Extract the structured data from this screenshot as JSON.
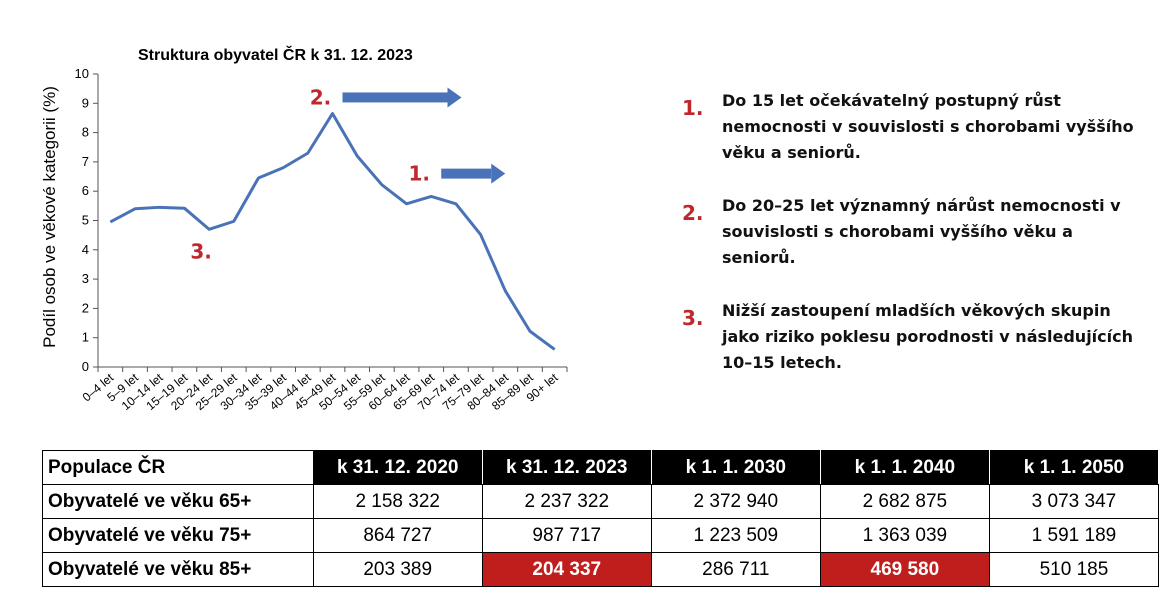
{
  "chart_data": {
    "type": "line",
    "title": "Struktura obyvatel ČR k 31. 12. 2023",
    "ylabel": "Podíl osob ve věkové kategorii (%)",
    "xlabel": "",
    "ylim": [
      0,
      10
    ],
    "yticks": [
      0,
      1,
      2,
      3,
      4,
      5,
      6,
      7,
      8,
      9,
      10
    ],
    "categories": [
      "0–4 let",
      "5–9 let",
      "10–14 let",
      "15–19 let",
      "20–24 let",
      "25–29 let",
      "30–34 let",
      "35–39 let",
      "40–44 let",
      "45–49 let",
      "50–54 let",
      "55–59 let",
      "60–64 let",
      "65–69 let",
      "70–74 let",
      "75–79 let",
      "80–84 let",
      "85–89 let",
      "90+ let"
    ],
    "values": [
      4.95,
      5.4,
      5.45,
      5.42,
      4.7,
      4.97,
      6.45,
      6.8,
      7.3,
      8.65,
      7.2,
      6.22,
      5.57,
      5.82,
      5.57,
      4.52,
      2.6,
      1.22,
      0.6
    ],
    "color": "#4a72b8",
    "annotations": [
      {
        "label": "2.",
        "category": "45–49 let",
        "y": 9.2
      },
      {
        "label": "1.",
        "category": "65–69 let",
        "y": 6.6
      },
      {
        "label": "3.",
        "category": "20–24 let",
        "y": 3.95
      }
    ],
    "annotation_color": "#c0272d",
    "arrow_color": "#4a72b8",
    "grid": false,
    "legend": "none"
  },
  "notes": [
    {
      "num": "1.",
      "text": "Do 15 let očekávatelný postupný růst nemocnosti v souvislosti s chorobami vyššího věku a seniorů."
    },
    {
      "num": "2.",
      "text": "Do 20–25 let významný nárůst nemocnosti v souvislosti s chorobami vyššího věku a seniorů."
    },
    {
      "num": "3.",
      "text": "Nižší zastoupení mladších věkových skupin jako riziko poklesu porodnosti v následujících 10–15 letech."
    }
  ],
  "table": {
    "header": [
      "Populace ČR",
      "k 31. 12. 2020",
      "k 31. 12. 2023",
      "k 1. 1. 2030",
      "k 1. 1. 2040",
      "k 1. 1. 2050"
    ],
    "rows": [
      {
        "label": "Obyvatelé ve věku 65+",
        "cells": [
          "2 158 322",
          "2 237 322",
          "2 372 940",
          "2 682 875",
          "3 073 347"
        ],
        "highlight": [
          false,
          false,
          false,
          false,
          false
        ]
      },
      {
        "label": "Obyvatelé ve věku 75+",
        "cells": [
          "864 727",
          "987 717",
          "1 223 509",
          "1 363 039",
          "1 591 189"
        ],
        "highlight": [
          false,
          false,
          false,
          false,
          false
        ]
      },
      {
        "label": "Obyvatelé ve věku 85+",
        "cells": [
          "203 389",
          "204 337",
          "286 711",
          "469 580",
          "510 185"
        ],
        "highlight": [
          false,
          true,
          false,
          true,
          false
        ]
      }
    ],
    "highlight_color": "#c01d1d"
  }
}
